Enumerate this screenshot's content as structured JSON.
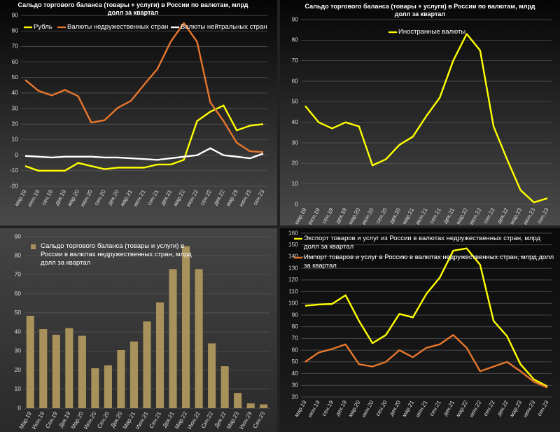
{
  "chart_data": [
    {
      "type": "line",
      "title": "Сальдо торгового баланса (товары + услуги) в России по валютам, млрд долл за квартал",
      "categories": [
        "мар.19",
        "июн.19",
        "сен.19",
        "дек.19",
        "мар.20",
        "июн.20",
        "сен.20",
        "дек.20",
        "мар.21",
        "июн.21",
        "сен.21",
        "дек.21",
        "мар.22",
        "июн.22",
        "сен.22",
        "дек.22",
        "мар.23",
        "июн.23",
        "сен.23"
      ],
      "series": [
        {
          "name": "Рубль",
          "color": "#ffff00",
          "values": [
            -7,
            -10,
            -10,
            -10,
            -5,
            -7,
            -9,
            -8,
            -8,
            -8,
            -6,
            -6,
            -3,
            22,
            28,
            32,
            16,
            19,
            20
          ]
        },
        {
          "name": "Валюты недружественных стран",
          "color": "#e8762c",
          "values": [
            48.5,
            41.5,
            38.5,
            42,
            38,
            21,
            22.5,
            30.5,
            35,
            45.5,
            55.5,
            73,
            85,
            73,
            34,
            22,
            8,
            2.5,
            2
          ]
        },
        {
          "name": "Валюты нейтральных стран",
          "color": "#ffffff",
          "values": [
            -0.5,
            -1,
            -1.5,
            -1,
            -1,
            -1,
            -1.5,
            -1.5,
            -2,
            -2.5,
            -3,
            -2,
            -1,
            0,
            4.5,
            0,
            -1,
            -2,
            1
          ]
        }
      ],
      "ylim": [
        -20,
        90
      ],
      "yticks": [
        -20,
        -10,
        0,
        10,
        20,
        30,
        40,
        50,
        60,
        70,
        80,
        90
      ],
      "grid": true
    },
    {
      "type": "line",
      "title": "Сальдо торгового баланса (товары + услуги) в России по валютам, млрд долл за квартал",
      "categories": [
        "мар.19",
        "июн.19",
        "сен.19",
        "дек.19",
        "мар.20",
        "июн.20",
        "сен.20",
        "дек.20",
        "мар.21",
        "июн.21",
        "сен.21",
        "дек.21",
        "мар.22",
        "июн.22",
        "сен.22",
        "дек.22",
        "мар.23",
        "июн.23",
        "сен.23"
      ],
      "series": [
        {
          "name": "Иностранные валюты",
          "color": "#ffff00",
          "values": [
            48,
            40,
            37,
            40,
            38,
            19,
            22,
            29,
            33,
            43,
            52,
            70,
            83,
            75,
            38,
            22,
            7,
            1,
            3
          ]
        }
      ],
      "ylim": [
        0,
        90
      ],
      "yticks": [
        0,
        10,
        20,
        30,
        40,
        50,
        60,
        70,
        80,
        90
      ],
      "grid": true
    },
    {
      "type": "bar",
      "categories": [
        "Мар.19",
        "Июн.19",
        "Сен.19",
        "Дек.19",
        "Мар.20",
        "Июн.20",
        "Сен.20",
        "Дек.20",
        "Мар.21",
        "Июн.21",
        "Сен.21",
        "Дек.21",
        "Мар.22",
        "Июн.22",
        "Сен.22",
        "Дек.22",
        "Мар.23",
        "Июн.23",
        "Сен.23"
      ],
      "series": [
        {
          "name": "Сальдо торгового баланса (товары и услуги) в России в валютах недружественных стран, млрд долл за квартал",
          "color": "#a8915a",
          "values": [
            48.5,
            41.5,
            38.5,
            42,
            38,
            21,
            22.5,
            30.5,
            35,
            45.5,
            55.5,
            73,
            85,
            73,
            34,
            22,
            8,
            2.5,
            2
          ]
        }
      ],
      "ylim": [
        0,
        90
      ],
      "yticks": [
        0,
        10,
        20,
        30,
        40,
        50,
        60,
        70,
        80,
        90
      ],
      "grid": true
    },
    {
      "type": "line",
      "categories": [
        "мар.19",
        "июн.19",
        "сен.19",
        "дек.19",
        "мар.20",
        "июн.20",
        "сен.20",
        "дек.20",
        "мар.21",
        "июн.21",
        "сен.21",
        "дек.21",
        "мар.22",
        "июн.22",
        "сен.22",
        "дек.22",
        "мар.23",
        "июн.23",
        "сен.23"
      ],
      "series": [
        {
          "name": "Экспорт товаров и услуг из России в валютах недружественных стран, млрд долл за квартал",
          "color": "#ffff00",
          "values": [
            98,
            99,
            99.5,
            107,
            85,
            66,
            73,
            91,
            88,
            108,
            122,
            145,
            147,
            133,
            85,
            72,
            48,
            35,
            29
          ]
        },
        {
          "name": "Импорт товаров и услуг в Россию в валютах недружественных стран, млрд долл за квартал",
          "color": "#e8762c",
          "values": [
            50,
            58,
            61,
            65,
            48,
            46,
            50,
            60,
            54,
            62,
            65,
            73,
            62,
            42,
            46,
            50,
            42,
            33,
            28
          ]
        }
      ],
      "ylim": [
        20,
        160
      ],
      "yticks": [
        20,
        30,
        40,
        50,
        60,
        70,
        80,
        90,
        100,
        110,
        120,
        130,
        140,
        150,
        160
      ],
      "grid": true
    }
  ]
}
